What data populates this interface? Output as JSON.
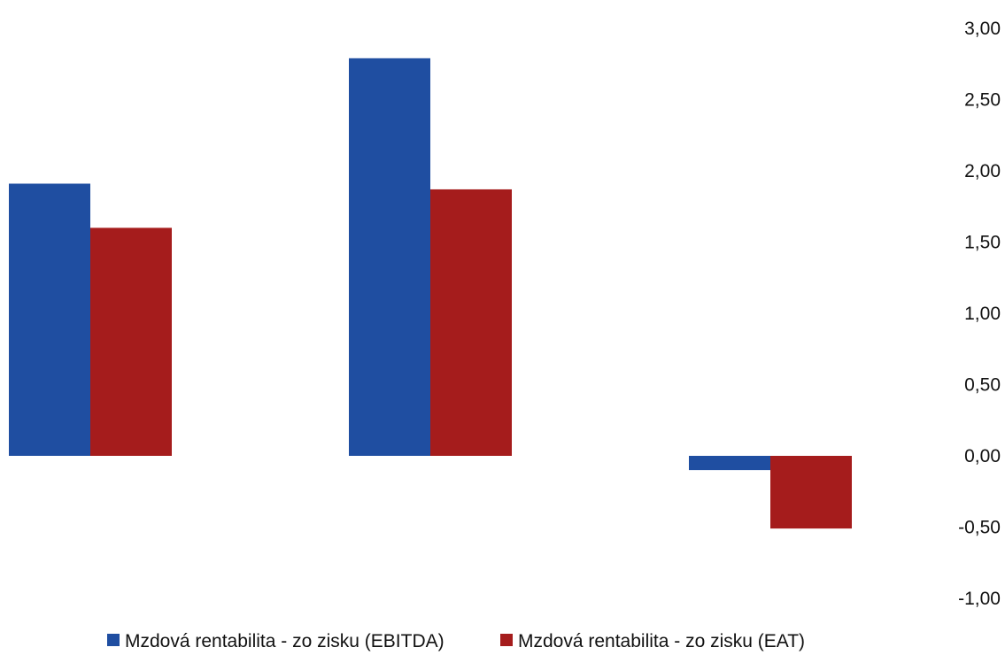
{
  "chart_data": {
    "type": "bar",
    "categories": [
      "",
      "",
      ""
    ],
    "series": [
      {
        "name": "Mzdová rentabilita - zo zisku (EBITDA)",
        "color": "#1f4ea1",
        "values": [
          1.91,
          2.79,
          -0.1
        ]
      },
      {
        "name": "Mzdová rentabilita - zo zisku (EAT)",
        "color": "#a51c1c",
        "values": [
          1.6,
          1.87,
          -0.51
        ]
      }
    ],
    "y_ticks": [
      "3,00",
      "2,50",
      "2,00",
      "1,50",
      "1,00",
      "0,50",
      "0,00",
      "-0,50",
      "-1,00"
    ],
    "ylim": [
      -1.0,
      3.0
    ],
    "y_axis_position": "right",
    "grid": false,
    "legend_position": "bottom"
  }
}
